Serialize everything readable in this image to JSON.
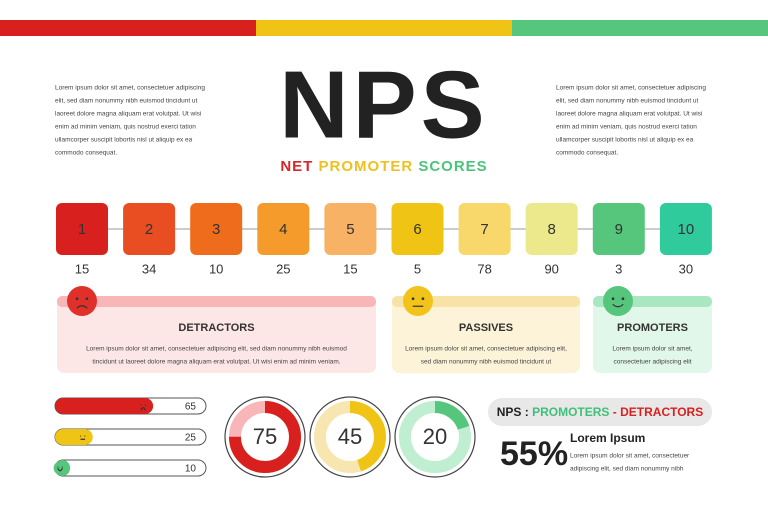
{
  "intro_left": [
    "Lorem ipsum dolor sit amet, consectetuer adipiscing",
    "elit, sed diam nonummy nibh euismod tincidunt ut",
    "laoreet dolore magna aliquam erat volutpat. Ut wisi",
    "enim ad minim veniam, quis nostrud exerci tation",
    "ullamcorper suscipit lobortis nisl ut aliquip ex ea",
    "commodo consequat."
  ],
  "intro_right": [
    "Lorem ipsum dolor sit amet, consectetuer adipiscing",
    "elit, sed diam nonummy nibh euismod tincidunt ut",
    "laoreet dolore magna aliquam erat volutpat. Ut wisi",
    "enim ad minim veniam, quis nostrud exerci tation",
    "ullamcorper suscipit lobortis nisl ut aliquip ex ea",
    "commodo consequat."
  ],
  "title": "NPS",
  "subtitle": [
    {
      "text": "NET",
      "color": "#d9262a"
    },
    {
      "text": "PROMOTER",
      "color": "#f0c020"
    },
    {
      "text": "SCORES",
      "color": "#4cc47c"
    }
  ],
  "scale": [
    {
      "score": 1,
      "count": 15,
      "color": "#d8201f"
    },
    {
      "score": 2,
      "count": 34,
      "color": "#e84e22"
    },
    {
      "score": 3,
      "count": 10,
      "color": "#ef6c1c"
    },
    {
      "score": 4,
      "count": 25,
      "color": "#f59b2b"
    },
    {
      "score": 5,
      "count": 15,
      "color": "#f8b266"
    },
    {
      "score": 6,
      "count": 5,
      "color": "#efc414"
    },
    {
      "score": 7,
      "count": 78,
      "color": "#f8d86a"
    },
    {
      "score": 8,
      "count": 90,
      "color": "#ebe98b"
    },
    {
      "score": 9,
      "count": 3,
      "color": "#55c67c"
    },
    {
      "score": 10,
      "count": 30,
      "color": "#2fcb9c"
    }
  ],
  "groups": [
    {
      "title": "DETRACTORS",
      "lines": [
        "Lorem ipsum dolor sit amet, consectetuer adipiscing elit, sed diam nonummy nibh euismod",
        "tincidunt ut laoreet dolore magna aliquam erat volutpat. Ut wisi enim ad minim veniam."
      ]
    },
    {
      "title": "PASSIVES",
      "lines": [
        "Lorem ipsum dolor sit amet, consectetuer adipiscing elit,",
        "sed diam nonummy nibh euismod tincidunt ut"
      ]
    },
    {
      "title": "PROMOTERS",
      "lines": [
        "Lorem ipsum dolor sit amet,",
        "consectetuer adipiscing elit"
      ]
    }
  ],
  "bars": [
    {
      "value": 65,
      "color": "#d8201f"
    },
    {
      "value": 25,
      "color": "#efc414"
    },
    {
      "value": 10,
      "color": "#55c67c"
    }
  ],
  "donuts": [
    {
      "value": 75,
      "color": "#d8201f",
      "track": "#f9b6b8"
    },
    {
      "value": 45,
      "color": "#efc414",
      "track": "#f8e6b0"
    },
    {
      "value": 20,
      "color": "#55c67c",
      "track": "#bfeed0"
    }
  ],
  "formula": [
    {
      "text": "NPS : ",
      "color": "#222222"
    },
    {
      "text": "PROMOTERS",
      "color": "#3fc07a"
    },
    {
      "text": " - ",
      "color": "#d8201f"
    },
    {
      "text": "DETRACTORS",
      "color": "#d8201f"
    }
  ],
  "result": {
    "value": "55%",
    "heading": "Lorem Ipsum",
    "lines": [
      "Lorem ipsum dolor sit amet, consectetuer",
      "adipiscing elit, sed diam nonummy nibh"
    ]
  }
}
